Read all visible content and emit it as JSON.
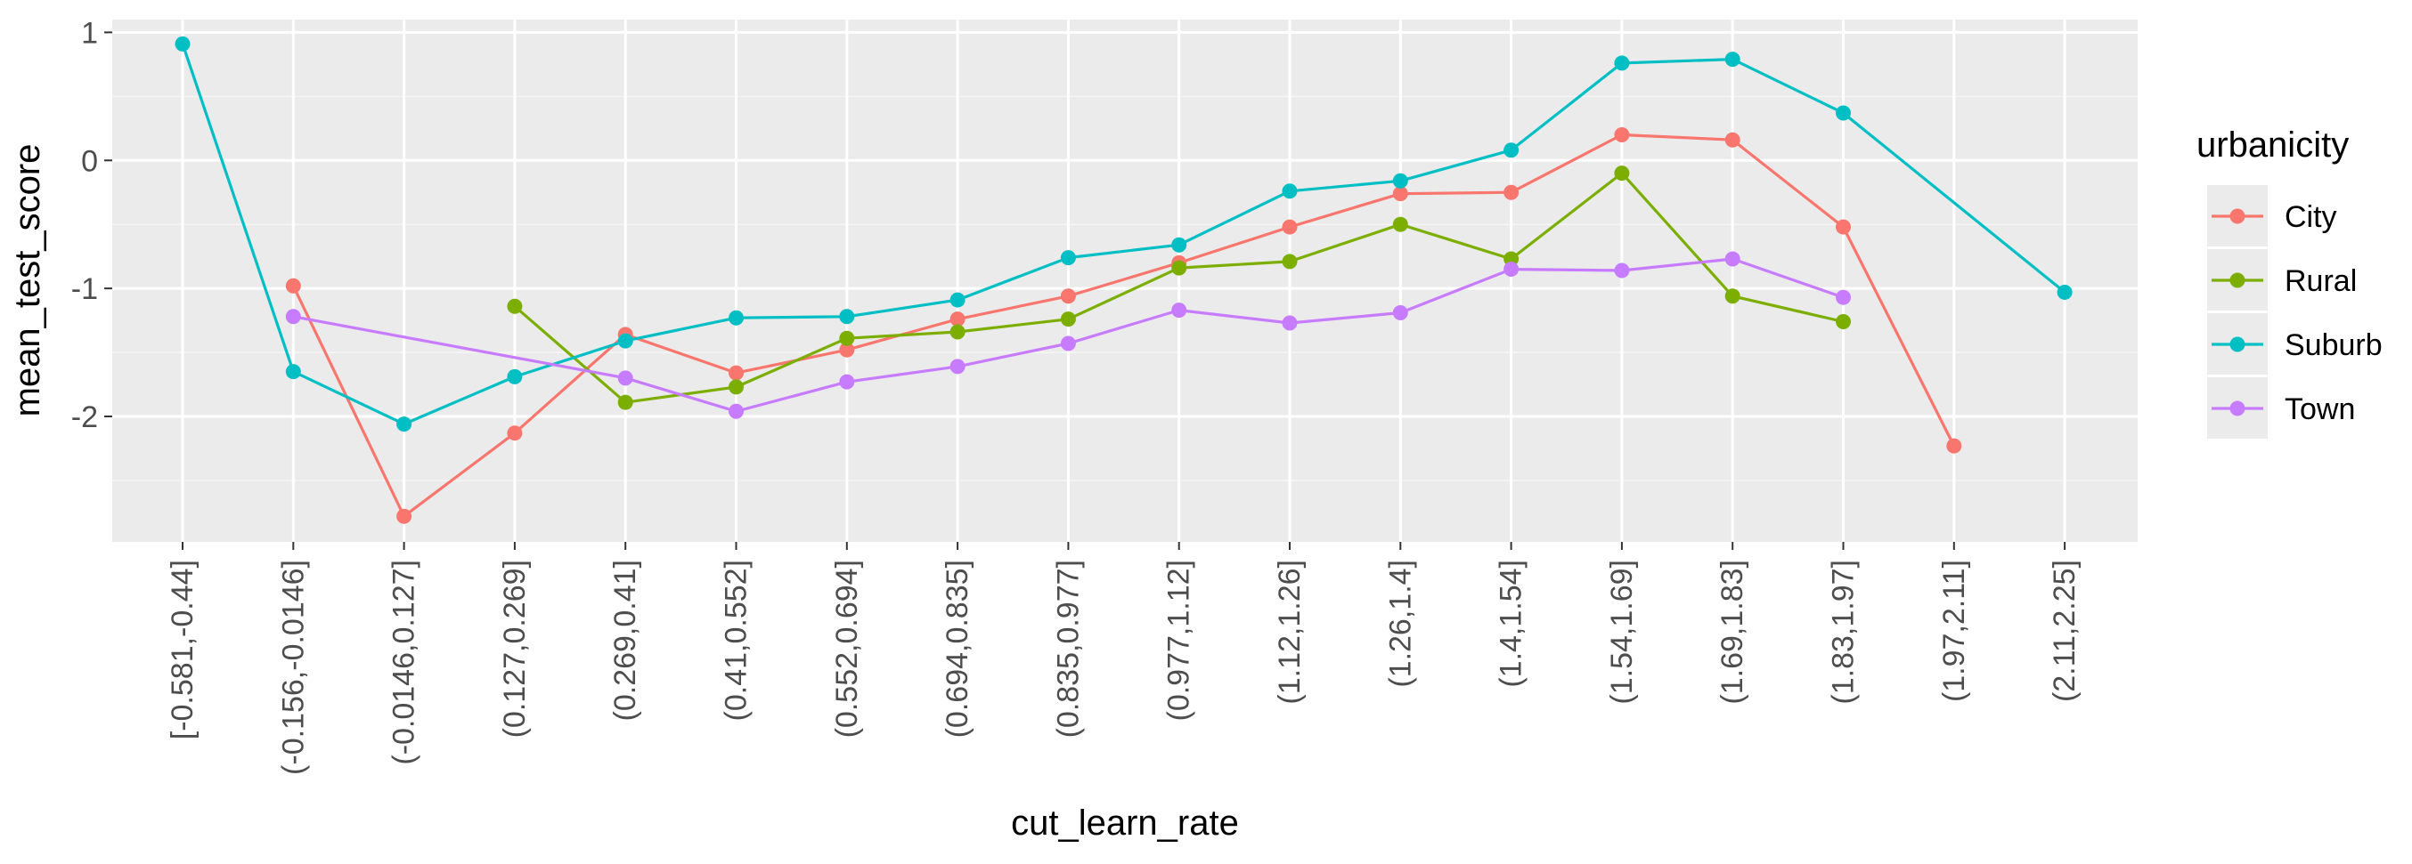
{
  "chart_data": {
    "type": "line",
    "xlabel": "cut_learn_rate",
    "ylabel": "mean_test_score",
    "ylim": [
      -2.98,
      1.1
    ],
    "yticks": [
      -2,
      -1,
      0,
      1
    ],
    "grid": true,
    "legend_position": "right",
    "legend_title": "urbanicity",
    "categories": [
      "[-0.581,-0.44]",
      "(-0.156,-0.0146]",
      "(-0.0146,0.127]",
      "(0.127,0.269]",
      "(0.269,0.41]",
      "(0.41,0.552]",
      "(0.552,0.694]",
      "(0.694,0.835]",
      "(0.835,0.977]",
      "(0.977,1.12]",
      "(1.12,1.26]",
      "(1.26,1.4]",
      "(1.4,1.54]",
      "(1.54,1.69]",
      "(1.69,1.83]",
      "(1.83,1.97]",
      "(1.97,2.11]",
      "(2.11,2.25]"
    ],
    "series": [
      {
        "name": "City",
        "color": "#F8766D",
        "values": [
          null,
          -0.98,
          -2.78,
          -2.13,
          -1.36,
          -1.66,
          -1.48,
          -1.24,
          -1.06,
          -0.8,
          -0.52,
          -0.26,
          -0.25,
          0.2,
          0.16,
          -0.52,
          -2.23,
          null
        ]
      },
      {
        "name": "Rural",
        "color": "#7CAE00",
        "values": [
          null,
          null,
          null,
          -1.14,
          -1.89,
          -1.77,
          -1.39,
          -1.34,
          -1.24,
          -0.84,
          -0.79,
          -0.5,
          -0.77,
          -0.1,
          -1.06,
          -1.26,
          null,
          null
        ]
      },
      {
        "name": "Suburb",
        "color": "#00BFC4",
        "values": [
          0.91,
          -1.65,
          -2.06,
          -1.69,
          -1.41,
          -1.23,
          -1.22,
          -1.09,
          -0.76,
          -0.66,
          -0.24,
          -0.16,
          0.08,
          0.76,
          0.79,
          0.37,
          null,
          -1.03
        ]
      },
      {
        "name": "Town",
        "color": "#C77CFF",
        "values": [
          null,
          -1.22,
          null,
          null,
          -1.7,
          -1.96,
          -1.73,
          -1.61,
          -1.43,
          -1.17,
          -1.27,
          -1.19,
          -0.85,
          -0.86,
          -0.77,
          -1.07,
          null,
          null
        ]
      }
    ]
  }
}
